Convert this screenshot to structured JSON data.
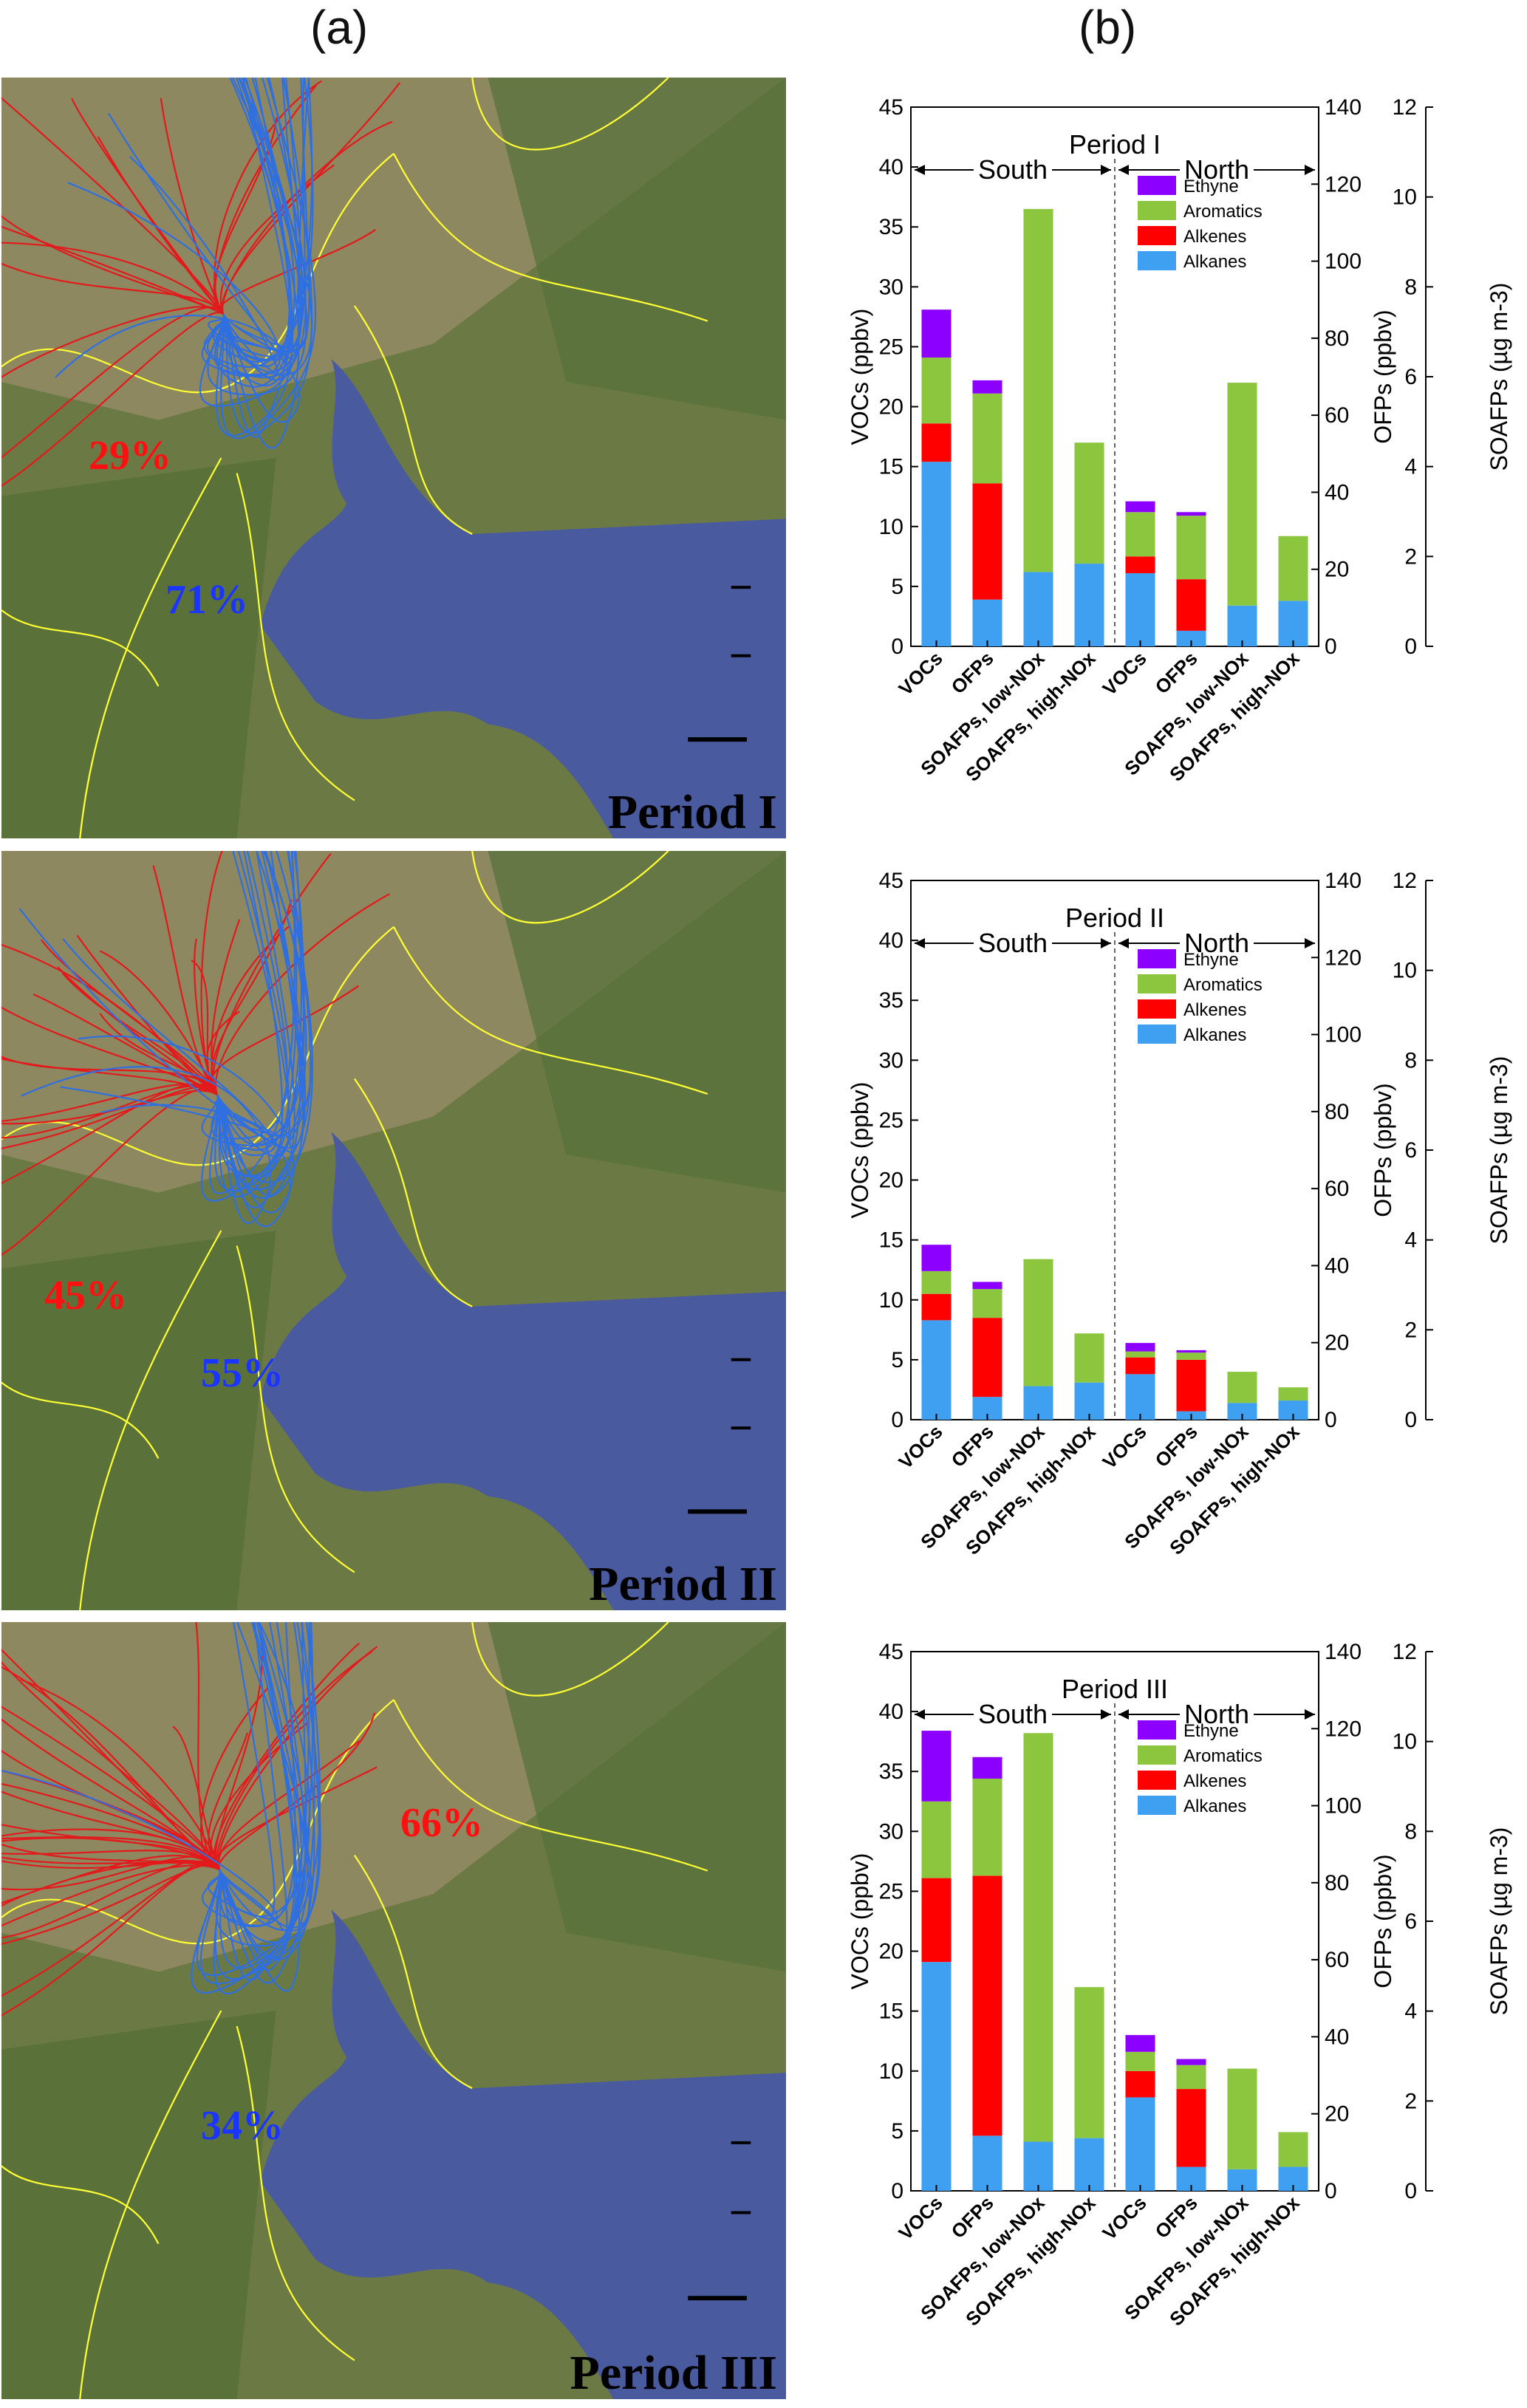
{
  "column_labels": {
    "a": "(a)",
    "b": "(b)"
  },
  "maps": [
    {
      "period": "Period I",
      "west_pct": "29%",
      "east_pct": "71%"
    },
    {
      "period": "Period II",
      "west_pct": "45%",
      "east_pct": "55%"
    },
    {
      "period": "Period III",
      "west_pct": "66%",
      "east_pct": "34%"
    }
  ],
  "colors": {
    "Ethyne": "#8b00ff",
    "Aromatics": "#8cc63f",
    "Alkenes": "#ff0000",
    "Alkanes": "#3f9ff0",
    "trajectory_west": "#e31a1c",
    "trajectory_east": "#2f6fe0",
    "boundary": "#ffff33",
    "sea": "#4a5a9e"
  },
  "chart_data": [
    {
      "type": "bar",
      "stacked": true,
      "title": "Period I",
      "regions": [
        "South",
        "North"
      ],
      "categories": [
        "VOCs",
        "OFPs",
        "SOAFPs, low-NOx",
        "SOAFPs, high-NOx",
        "VOCs",
        "OFPs",
        "SOAFPs, low-NOx",
        "SOAFPs, high-NOx"
      ],
      "ylabel_left": "VOCs (ppbv)",
      "ylabel_right1": "OFPs (ppbv)",
      "ylabel_right2": "SOAFPs (µg m-3)",
      "ylim_left": [
        0,
        45
      ],
      "ylim_right1": [
        0,
        140
      ],
      "ylim_right2": [
        0,
        12
      ],
      "ticks_left": [
        "0",
        "5",
        "10",
        "15",
        "20",
        "25",
        "30",
        "35",
        "40",
        "45"
      ],
      "ticks_right1": [
        "0",
        "20",
        "40",
        "60",
        "80",
        "100",
        "120",
        "140"
      ],
      "ticks_right2": [
        "0",
        "2",
        "4",
        "6",
        "8",
        "10",
        "12"
      ],
      "legend": [
        "Ethyne",
        "Aromatics",
        "Alkenes",
        "Alkanes"
      ],
      "legend_position": "top-right",
      "series": [
        {
          "name": "Alkanes",
          "values": [
            15.4,
            3.9,
            6.2,
            6.9,
            6.1,
            1.3,
            3.4,
            3.8
          ]
        },
        {
          "name": "Alkenes",
          "values": [
            3.2,
            9.7,
            0,
            0,
            1.4,
            4.3,
            0,
            0
          ]
        },
        {
          "name": "Aromatics",
          "values": [
            5.5,
            7.5,
            30.3,
            10.1,
            3.7,
            5.3,
            18.6,
            5.4
          ]
        },
        {
          "name": "Ethyne",
          "values": [
            4.0,
            1.1,
            0,
            0,
            0.9,
            0.3,
            0,
            0
          ]
        }
      ]
    },
    {
      "type": "bar",
      "stacked": true,
      "title": "Period II",
      "regions": [
        "South",
        "North"
      ],
      "categories": [
        "VOCs",
        "OFPs",
        "SOAFPs, low-NOx",
        "SOAFPs, high-NOx",
        "VOCs",
        "OFPs",
        "SOAFPs, low-NOx",
        "SOAFPs, high-NOx"
      ],
      "ylabel_left": "VOCs (ppbv)",
      "ylabel_right1": "OFPs (ppbv)",
      "ylabel_right2": "SOAFPs (µg m-3)",
      "ylim_left": [
        0,
        45
      ],
      "ylim_right1": [
        0,
        140
      ],
      "ylim_right2": [
        0,
        12
      ],
      "ticks_left": [
        "0",
        "5",
        "10",
        "15",
        "20",
        "25",
        "30",
        "35",
        "40",
        "45"
      ],
      "ticks_right1": [
        "0",
        "20",
        "40",
        "60",
        "80",
        "100",
        "120",
        "140"
      ],
      "ticks_right2": [
        "0",
        "2",
        "4",
        "6",
        "8",
        "10",
        "12"
      ],
      "legend": [
        "Ethyne",
        "Aromatics",
        "Alkenes",
        "Alkanes"
      ],
      "legend_position": "top-right",
      "series": [
        {
          "name": "Alkanes",
          "values": [
            8.3,
            1.9,
            2.8,
            3.1,
            3.8,
            0.7,
            1.4,
            1.6
          ]
        },
        {
          "name": "Alkenes",
          "values": [
            2.2,
            6.6,
            0,
            0,
            1.4,
            4.3,
            0,
            0
          ]
        },
        {
          "name": "Aromatics",
          "values": [
            1.9,
            2.4,
            10.6,
            4.1,
            0.5,
            0.6,
            2.6,
            1.1
          ]
        },
        {
          "name": "Ethyne",
          "values": [
            2.2,
            0.6,
            0,
            0,
            0.7,
            0.2,
            0,
            0
          ]
        }
      ]
    },
    {
      "type": "bar",
      "stacked": true,
      "title": "Period III",
      "regions": [
        "South",
        "North"
      ],
      "categories": [
        "VOCs",
        "OFPs",
        "SOAFPs, low-NOx",
        "SOAFPs, high-NOx",
        "VOCs",
        "OFPs",
        "SOAFPs, low-NOx",
        "SOAFPs, high-NOx"
      ],
      "ylabel_left": "VOCs (ppbv)",
      "ylabel_right1": "OFPs (ppbv)",
      "ylabel_right2": "SOAFPs (µg m-3)",
      "ylim_left": [
        0,
        45
      ],
      "ylim_right1": [
        0,
        140
      ],
      "ylim_right2": [
        0,
        12
      ],
      "ticks_left": [
        "0",
        "5",
        "10",
        "15",
        "20",
        "25",
        "30",
        "35",
        "40",
        "45"
      ],
      "ticks_right1": [
        "0",
        "20",
        "40",
        "60",
        "80",
        "100",
        "120",
        "140"
      ],
      "ticks_right2": [
        "0",
        "2",
        "4",
        "6",
        "8",
        "10",
        "12"
      ],
      "legend": [
        "Ethyne",
        "Aromatics",
        "Alkenes",
        "Alkanes"
      ],
      "legend_position": "top-right",
      "series": [
        {
          "name": "Alkanes",
          "values": [
            19.1,
            4.6,
            4.1,
            4.4,
            7.8,
            2.0,
            1.8,
            2.0
          ]
        },
        {
          "name": "Alkenes",
          "values": [
            7.0,
            21.7,
            0,
            0,
            2.2,
            6.5,
            0,
            0
          ]
        },
        {
          "name": "Aromatics",
          "values": [
            6.4,
            8.1,
            34.1,
            12.6,
            1.6,
            2.0,
            8.4,
            2.9
          ]
        },
        {
          "name": "Ethyne",
          "values": [
            5.9,
            1.8,
            0,
            0,
            1.4,
            0.5,
            0,
            0
          ]
        }
      ]
    }
  ]
}
